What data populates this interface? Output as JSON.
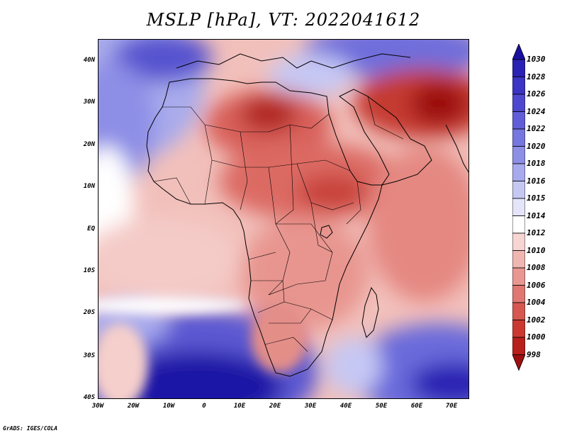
{
  "title": "MSLP [hPa], VT: 2022041612",
  "map": {
    "variable": "MSLP",
    "units": "hPa",
    "valid_time": "2022041612",
    "lat_labels": [
      "40N",
      "30N",
      "20N",
      "10N",
      "EQ",
      "10S",
      "20S",
      "30S",
      "40S"
    ],
    "lon_labels": [
      "30W",
      "20W",
      "10W",
      "0",
      "10E",
      "20E",
      "30E",
      "40E",
      "50E",
      "60E",
      "70E"
    ]
  },
  "colorbar": {
    "levels": [
      "1030",
      "1028",
      "1026",
      "1024",
      "1022",
      "1020",
      "1018",
      "1016",
      "1015",
      "1014",
      "1012",
      "1010",
      "1008",
      "1006",
      "1004",
      "1002",
      "1000",
      "998"
    ],
    "colors": [
      "#1a10a0",
      "#2a22b4",
      "#3b34c4",
      "#4d48cf",
      "#615ed8",
      "#7676df",
      "#8d8ee6",
      "#a8aaee",
      "#c6c8f4",
      "#e4e5fa",
      "#ffffff",
      "#f7d5d2",
      "#f0b6b1",
      "#e99792",
      "#e07772",
      "#d6574f",
      "#cb3830",
      "#b8201c",
      "#9c1010"
    ]
  },
  "footer": "GrADS: IGES/COLA"
}
